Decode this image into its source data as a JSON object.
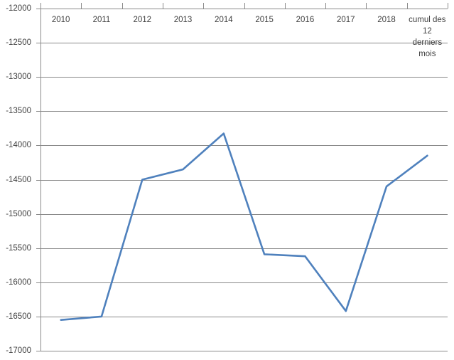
{
  "chart_data": {
    "type": "line",
    "title": "",
    "xlabel": "",
    "ylabel": "",
    "categories": [
      "2010",
      "2011",
      "2012",
      "2013",
      "2014",
      "2015",
      "2016",
      "2017",
      "2018",
      "cumul des\n12\nderniers\nmois"
    ],
    "values": [
      -16550,
      -16500,
      -14500,
      -14350,
      -13825,
      -15590,
      -15620,
      -16420,
      -14600,
      -14150
    ],
    "ylim": [
      -17000,
      -12000
    ],
    "ytick_step": 500,
    "y_tick_labels": [
      "-12000",
      "-12500",
      "-13000",
      "-13500",
      "-14000",
      "-14500",
      "-15000",
      "-15500",
      "-16000",
      "-16500",
      "-17000"
    ],
    "grid": true,
    "legend": false,
    "legend_position": "none",
    "axis_labels_position": "top",
    "colors": {
      "line": "#4F81BD",
      "gridline": "#8a8a8a",
      "axis": "#8a8a8a",
      "text": "#3f3f3f",
      "background": "#ffffff"
    }
  }
}
